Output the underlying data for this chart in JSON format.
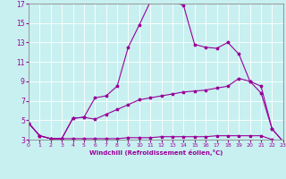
{
  "xlabel": "Windchill (Refroidissement éolien,°C)",
  "bg_color": "#c8f0f0",
  "line_color": "#990099",
  "xlim": [
    0,
    23
  ],
  "ylim": [
    3,
    17
  ],
  "xticks": [
    0,
    1,
    2,
    3,
    4,
    5,
    6,
    7,
    8,
    9,
    10,
    11,
    12,
    13,
    14,
    15,
    16,
    17,
    18,
    19,
    20,
    21,
    22,
    23
  ],
  "yticks": [
    3,
    5,
    7,
    9,
    11,
    13,
    15,
    17
  ],
  "line1_x": [
    0,
    1,
    2,
    3,
    4,
    5,
    6,
    7,
    8,
    9,
    10,
    11,
    12,
    13,
    14,
    15,
    16,
    17,
    18,
    19,
    20,
    21,
    22,
    23
  ],
  "line1_y": [
    4.7,
    3.4,
    3.1,
    3.1,
    3.1,
    3.1,
    3.1,
    3.1,
    3.1,
    3.2,
    3.2,
    3.2,
    3.3,
    3.3,
    3.3,
    3.3,
    3.3,
    3.4,
    3.4,
    3.4,
    3.4,
    3.4,
    3.0,
    2.8
  ],
  "line2_x": [
    0,
    1,
    2,
    3,
    4,
    5,
    6,
    7,
    8,
    9,
    10,
    11,
    12,
    13,
    14,
    15,
    16,
    17,
    18,
    19,
    20,
    21,
    22,
    23
  ],
  "line2_y": [
    4.7,
    3.4,
    3.1,
    3.1,
    5.2,
    5.3,
    5.1,
    5.6,
    6.1,
    6.6,
    7.1,
    7.3,
    7.5,
    7.7,
    7.9,
    8.0,
    8.1,
    8.3,
    8.5,
    9.3,
    9.0,
    7.8,
    4.1,
    2.8
  ],
  "line3_x": [
    0,
    1,
    2,
    3,
    4,
    5,
    6,
    7,
    8,
    9,
    10,
    11,
    12,
    13,
    14,
    15,
    16,
    17,
    18,
    19,
    20,
    21,
    22,
    23
  ],
  "line3_y": [
    4.7,
    3.4,
    3.1,
    3.1,
    5.2,
    5.3,
    7.3,
    7.5,
    8.5,
    12.5,
    14.8,
    17.2,
    17.5,
    17.3,
    16.8,
    12.8,
    12.5,
    12.4,
    13.0,
    11.8,
    9.0,
    8.5,
    4.1,
    2.8
  ]
}
